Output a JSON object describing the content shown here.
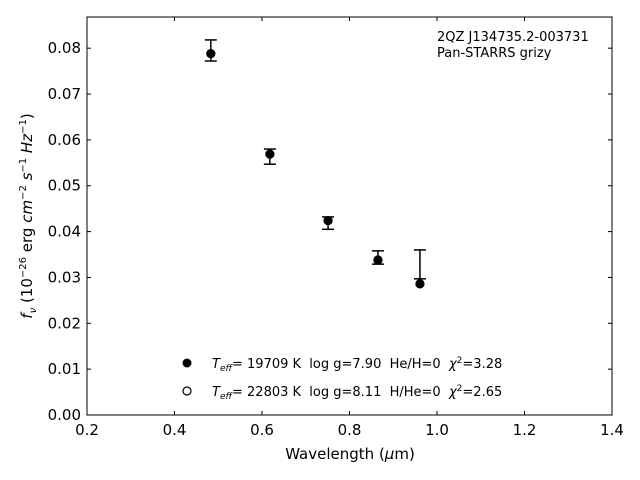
{
  "chart_data": {
    "type": "scatter",
    "xlabel": "Wavelength (μm)",
    "xlabel_parts": [
      "Wavelength (",
      "μ",
      "m)"
    ],
    "ylabel_parts": {
      "f": "f",
      "nu": "ν",
      "a": " (10",
      "e1": "−26",
      "b": " erg ",
      "cm": "cm",
      "e2": "−2",
      "s": " s",
      "e3": "−1",
      "hz": " Hz",
      "e4": "−1",
      "c": ")"
    },
    "xlim": [
      0.2,
      1.4
    ],
    "ylim": [
      0.0,
      0.0868
    ],
    "xticks": [
      "0.2",
      "0.4",
      "0.6",
      "0.8",
      "1.0",
      "1.2",
      "1.4"
    ],
    "yticks": [
      "0.00",
      "0.01",
      "0.02",
      "0.03",
      "0.04",
      "0.05",
      "0.06",
      "0.07",
      "0.08"
    ],
    "grid": false,
    "annotation": [
      "2QZ J134735.2-003731",
      "Pan-STARRS grizy"
    ],
    "observed": {
      "name": "Pan-STARRS grizy",
      "x": [
        0.483,
        0.618,
        0.751,
        0.865,
        0.961
      ],
      "y_low": [
        0.0772,
        0.0547,
        0.0405,
        0.0329,
        0.0297
      ],
      "y_high": [
        0.0818,
        0.058,
        0.0432,
        0.0358,
        0.036
      ]
    },
    "series": [
      {
        "name": "He/H=0 model",
        "marker": "filled",
        "x": [
          0.483,
          0.618,
          0.751,
          0.865,
          0.961
        ],
        "y": [
          0.0788,
          0.0569,
          0.0424,
          0.0338,
          0.0286
        ],
        "legend": {
          "t": "T",
          "eff": "eff",
          "rest": "= 19709 K  log g=7.90  He/H=0  ",
          "chi": "χ",
          "sq": "2",
          "val": "=3.28"
        }
      },
      {
        "name": "H/He=0 model",
        "marker": "open",
        "x": [
          0.483,
          0.618,
          0.751,
          0.865,
          0.961
        ],
        "y": [
          0.0788,
          0.0569,
          0.0424,
          0.0338,
          0.0286
        ],
        "legend": {
          "t": "T",
          "eff": "eff",
          "rest": "= 22803 K  log g=8.11  H/He=0  ",
          "chi": "χ",
          "sq": "2",
          "val": "=2.65"
        }
      }
    ],
    "legend_placement": "bottom-center"
  }
}
